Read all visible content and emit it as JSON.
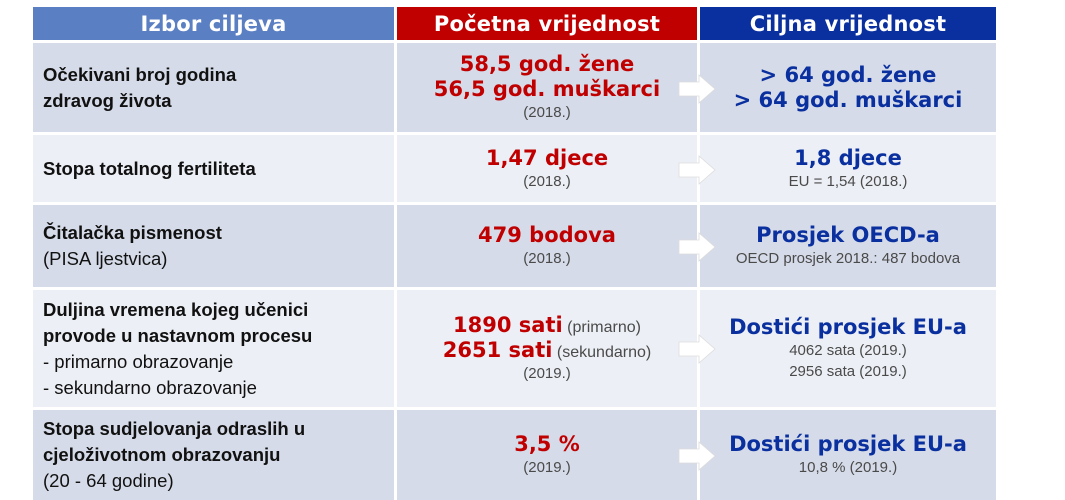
{
  "headers": {
    "col1": "Izbor ciljeva",
    "col2": "Početna vrijednost",
    "col3": "Ciljna vrijednost"
  },
  "colors": {
    "header_col1": "#5b7fc3",
    "header_col2": "#c00000",
    "header_col3": "#0a2f9e",
    "row_dark": "#d5dbe8",
    "row_light": "#eceff5",
    "start_text": "#c00000",
    "target_text": "#0a2f9e"
  },
  "icons": {
    "separator": "right-arrow-icon"
  },
  "rows": [
    {
      "label_lines": [
        "Očekivani broj godina",
        "zdravog života"
      ],
      "start_lines": [
        "58,5 god. žene",
        "56,5 god. muškarci"
      ],
      "start_note": "(2018.)",
      "target_lines": [
        "> 64 god. žene",
        "> 64 god. muškarci"
      ]
    },
    {
      "label_lines": [
        "Stopa totalnog fertiliteta"
      ],
      "start_lines": [
        "1,47 djece"
      ],
      "start_note": "(2018.)",
      "target_lines": [
        "1,8 djece"
      ],
      "target_notes": [
        "EU = 1,54 (2018.)"
      ]
    },
    {
      "label_lines": [
        "Čitalačka pismenost"
      ],
      "label_sub_lines": [
        "(PISA ljestvica)"
      ],
      "start_lines": [
        "479 bodova"
      ],
      "start_note": "(2018.)",
      "target_lines": [
        "Prosjek OECD-a"
      ],
      "target_notes": [
        "OECD prosjek 2018.: 487 bodova"
      ]
    },
    {
      "label_lines": [
        "Duljina vremena kojeg učenici",
        "provode u nastavnom procesu"
      ],
      "label_sub_lines": [
        "- primarno obrazovanje",
        "- sekundarno obrazovanje"
      ],
      "start_items": [
        {
          "value": "1890 sati",
          "qualifier": "(primarno)"
        },
        {
          "value": "2651 sati",
          "qualifier": "(sekundarno)"
        }
      ],
      "start_note": "(2019.)",
      "target_lines": [
        "Dostići prosjek EU-a"
      ],
      "target_notes": [
        "4062 sata (2019.)",
        "2956 sata (2019.)"
      ]
    },
    {
      "label_lines": [
        "Stopa sudjelovanja odraslih u",
        "cjeloživotnom obrazovanju"
      ],
      "label_sub_lines": [
        "(20 - 64 godine)"
      ],
      "start_lines": [
        "3,5 %"
      ],
      "start_note": "(2019.)",
      "target_lines": [
        "Dostići prosjek EU-a"
      ],
      "target_notes": [
        "10,8 % (2019.)"
      ]
    }
  ]
}
